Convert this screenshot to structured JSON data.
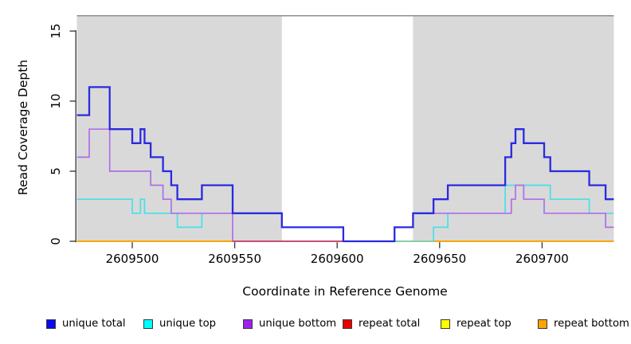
{
  "figure": {
    "background": "#ffffff",
    "panel_color": "#d9d9d9",
    "panel_top_border_color": "#8e8e8e",
    "axis_color": "#333333"
  },
  "chart_data": {
    "type": "line",
    "subtype": "step-after",
    "title": "",
    "xlabel": "Coordinate in Reference Genome",
    "ylabel": "Read Coverage Depth",
    "x_range": [
      2609473,
      2609735
    ],
    "y_range": [
      0,
      16.2
    ],
    "x_ticks": [
      2609500,
      2609550,
      2609600,
      2609650,
      2609700
    ],
    "y_ticks": [
      0,
      5,
      10,
      15
    ],
    "grid": false,
    "legend_position": "bottom",
    "shaded_regions": [
      {
        "name": "left-gray-panel",
        "from": 2609473,
        "to": 2609573,
        "color": "#d9d9d9"
      },
      {
        "name": "right-gray-panel",
        "from": 2609637,
        "to": 2609735,
        "color": "#d9d9d9"
      }
    ],
    "series": [
      {
        "name": "unique total",
        "color": "#0000EE",
        "line_color": "#2a2ae0",
        "width": 2.3,
        "end": 2609735,
        "steps": [
          [
            2609473,
            9
          ],
          [
            2609479,
            11
          ],
          [
            2609489,
            8
          ],
          [
            2609500,
            7
          ],
          [
            2609504,
            8
          ],
          [
            2609506,
            7
          ],
          [
            2609509,
            6
          ],
          [
            2609515,
            5
          ],
          [
            2609519,
            4
          ],
          [
            2609522,
            3
          ],
          [
            2609534,
            4
          ],
          [
            2609549,
            2
          ],
          [
            2609573,
            1
          ],
          [
            2609603,
            0
          ],
          [
            2609628,
            1
          ],
          [
            2609637,
            2
          ],
          [
            2609647,
            3
          ],
          [
            2609654,
            4
          ],
          [
            2609682,
            6
          ],
          [
            2609685,
            7
          ],
          [
            2609687,
            8
          ],
          [
            2609691,
            7
          ],
          [
            2609701,
            6
          ],
          [
            2609704,
            5
          ],
          [
            2609723,
            4
          ],
          [
            2609731,
            3
          ]
        ]
      },
      {
        "name": "unique top",
        "color": "#00FFFF",
        "line_color": "#49dfe8",
        "width": 1.7,
        "end": 2609735,
        "steps": [
          [
            2609473,
            3
          ],
          [
            2609500,
            2
          ],
          [
            2609504,
            3
          ],
          [
            2609506,
            2
          ],
          [
            2609522,
            1
          ],
          [
            2609534,
            2
          ],
          [
            2609573,
            1
          ],
          [
            2609603,
            0
          ],
          [
            2609647,
            1
          ],
          [
            2609654,
            2
          ],
          [
            2609682,
            4
          ],
          [
            2609704,
            3
          ],
          [
            2609723,
            2
          ]
        ]
      },
      {
        "name": "unique bottom",
        "color": "#A020F0",
        "line_color": "#b06ee8",
        "width": 1.7,
        "end": 2609735,
        "steps": [
          [
            2609473,
            6
          ],
          [
            2609479,
            8
          ],
          [
            2609489,
            5
          ],
          [
            2609509,
            4
          ],
          [
            2609515,
            3
          ],
          [
            2609519,
            2
          ],
          [
            2609549,
            0
          ],
          [
            2609628,
            1
          ],
          [
            2609637,
            2
          ],
          [
            2609685,
            3
          ],
          [
            2609687,
            4
          ],
          [
            2609691,
            3
          ],
          [
            2609701,
            2
          ],
          [
            2609731,
            1
          ]
        ]
      },
      {
        "name": "repeat total",
        "color": "#E60000",
        "line_color": "#e60000",
        "width": 1.7,
        "end": 2609735,
        "steps": [
          [
            2609473,
            0
          ]
        ]
      },
      {
        "name": "repeat top",
        "color": "#FFFF00",
        "line_color": "#ffff00",
        "width": 1.7,
        "end": 2609735,
        "steps": [
          [
            2609473,
            0
          ]
        ]
      },
      {
        "name": "repeat bottom",
        "color": "#FFA500",
        "line_color": "#ffa500",
        "width": 2.0,
        "end": 2609735,
        "steps": [
          [
            2609473,
            0
          ]
        ]
      }
    ],
    "baseline_overlays": [
      {
        "from": 2609549,
        "to": 2609603,
        "color": "#c94f72"
      },
      {
        "from": 2609628,
        "to": 2609647,
        "color": "#86cfa6"
      }
    ]
  },
  "legend": {
    "items": [
      {
        "label": "unique total",
        "color": "#0a0af0"
      },
      {
        "label": "unique top",
        "color": "#00ffff"
      },
      {
        "label": "unique bottom",
        "color": "#a020f0"
      },
      {
        "label": "repeat total",
        "color": "#e60000"
      },
      {
        "label": "repeat top",
        "color": "#ffff00"
      },
      {
        "label": "repeat bottom",
        "color": "#ffa500"
      }
    ]
  }
}
